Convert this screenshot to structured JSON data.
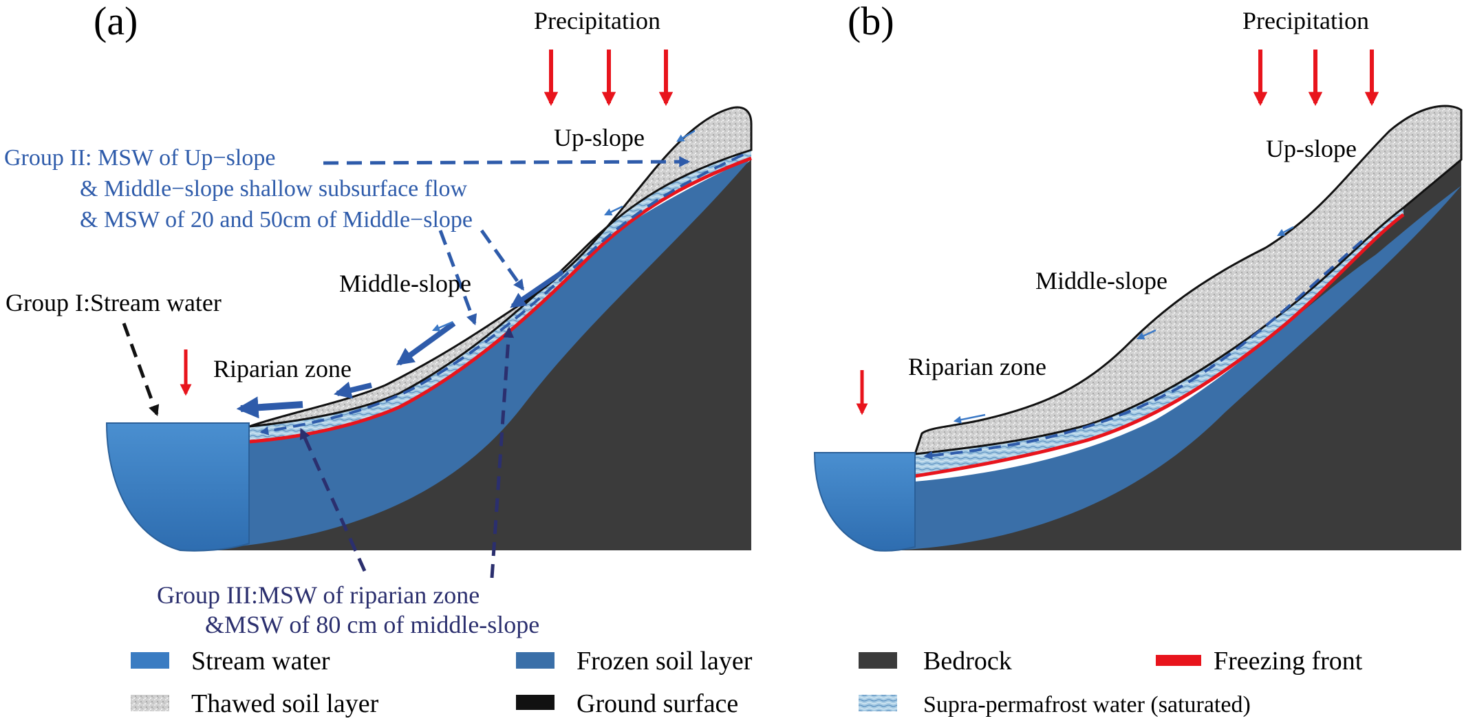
{
  "panels": {
    "a": {
      "label": "(a)",
      "precipitation": "Precipitation",
      "up_slope": "Up-slope",
      "middle_slope": "Middle-slope",
      "riparian_zone": "Riparian zone",
      "group1": "Group I:Stream water",
      "group2_line1": "Group II: MSW of Up−slope",
      "group2_line2": "& Middle−slope shallow subsurface flow",
      "group2_line3": "& MSW of 20 and 50cm of Middle−slope",
      "group3_line1": "Group III:MSW of riparian zone",
      "group3_line2": "&MSW of 80 cm of middle-slope"
    },
    "b": {
      "label": "(b)",
      "precipitation": "Precipitation",
      "up_slope": "Up-slope",
      "middle_slope": "Middle-slope",
      "riparian_zone": "Riparian zone"
    }
  },
  "colors": {
    "stream_water": "#3A7CC2",
    "frozen_soil": "#3A6FA8",
    "bedrock": "#3B3B3B",
    "freezing_front": "#E8141C",
    "ground_surface": "#111111",
    "thawed_soil": "#C9C9C9",
    "supra_water": "#9DC3DE",
    "group2_arrow": "#2E5BAA",
    "group3_arrow": "#2B2F6E",
    "precip_arrow": "#E8141C"
  },
  "legend": {
    "stream_water": "Stream water",
    "frozen_soil": "Frozen soil layer",
    "bedrock": "Bedrock",
    "freezing_front": "Freezing front",
    "thawed_soil": "Thawed soil layer",
    "ground_surface": "Ground surface",
    "supra_water": "Supra-permafrost water (saturated)"
  }
}
